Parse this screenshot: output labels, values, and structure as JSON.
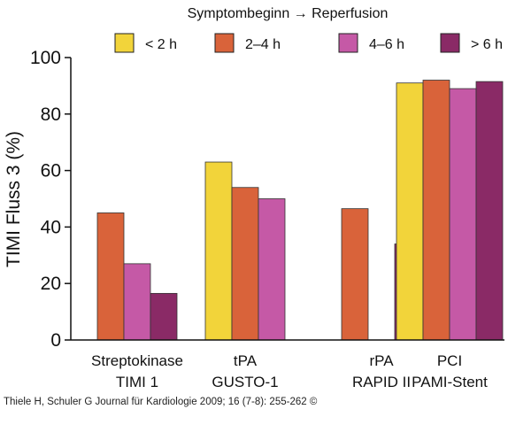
{
  "chart_data": {
    "type": "bar",
    "legend_title": "Symptombeginn → Reperfusion",
    "ylabel": "TIMI Fluss 3 (%)",
    "xlabel": "",
    "ylim": [
      0,
      100
    ],
    "yticks": [
      0,
      20,
      40,
      60,
      80,
      100
    ],
    "legend_position": "top",
    "grid": false,
    "categories": [
      [
        "Streptokinase",
        "TIMI 1"
      ],
      [
        "tPA",
        "GUSTO-1"
      ],
      [
        "rPA",
        "RAPID II"
      ],
      [
        "PCI",
        "PAMI-Stent"
      ]
    ],
    "series": [
      {
        "name": "< 2 h",
        "color": "#f2d43a",
        "values": [
          null,
          63,
          null,
          91
        ]
      },
      {
        "name": "2–4 h",
        "color": "#d9633a",
        "values": [
          45,
          54,
          46.5,
          92
        ]
      },
      {
        "name": "4–6 h",
        "color": "#c559a6",
        "values": [
          27,
          50,
          null,
          89
        ]
      },
      {
        "name": "> 6 h",
        "color": "#8a2a66",
        "values": [
          16.5,
          null,
          34,
          91.5
        ]
      }
    ]
  },
  "source": "Thiele H, Schuler G Journal für Kardiologie 2009; 16 (7-8): 255-262 ©"
}
